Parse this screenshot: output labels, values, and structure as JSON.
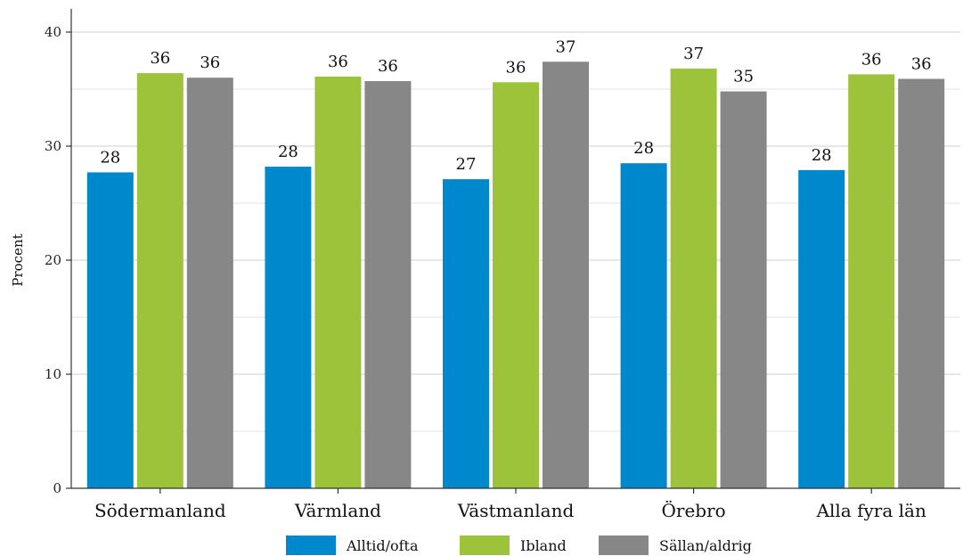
{
  "chart_data": {
    "type": "bar",
    "categories": [
      "Södermanland",
      "Värmland",
      "Västmanland",
      "Örebro",
      "Alla fyra län"
    ],
    "series": [
      {
        "name": "Alltid/ofta",
        "color": "#0088cc",
        "values": [
          27.7,
          28.2,
          27.1,
          28.5,
          27.9
        ],
        "labels": [
          "28",
          "28",
          "27",
          "28",
          "28"
        ]
      },
      {
        "name": "Ibland",
        "color": "#9dc33b",
        "values": [
          36.4,
          36.1,
          35.6,
          36.8,
          36.3
        ],
        "labels": [
          "36",
          "36",
          "36",
          "37",
          "36"
        ]
      },
      {
        "name": "Sällan/aldrig",
        "color": "#878787",
        "values": [
          36.0,
          35.7,
          37.4,
          34.8,
          35.9
        ],
        "labels": [
          "36",
          "36",
          "37",
          "35",
          "36"
        ]
      }
    ],
    "ylabel": "Procent",
    "xlabel": "",
    "ylim": [
      0,
      40
    ],
    "yticks": [
      0,
      10,
      20,
      30,
      40
    ],
    "ytick_labels": [
      "0",
      "10",
      "20",
      "30",
      "40"
    ],
    "grid": true,
    "legend_position": "bottom"
  }
}
